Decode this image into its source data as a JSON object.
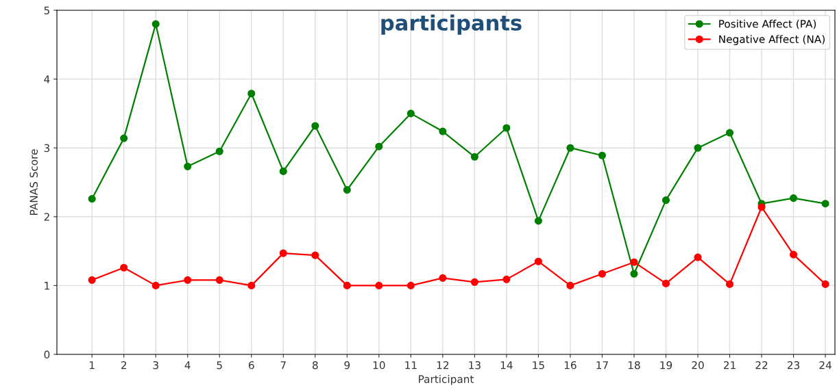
{
  "chart_data": {
    "type": "line",
    "title": "participants",
    "xlabel": "Participant",
    "ylabel": "PANAS Score",
    "x": [
      1,
      2,
      3,
      4,
      5,
      6,
      7,
      8,
      9,
      10,
      11,
      12,
      13,
      14,
      15,
      16,
      17,
      18,
      19,
      20,
      21,
      22,
      23,
      24
    ],
    "series": [
      {
        "name": "Positive Affect (PA)",
        "color": "#008000",
        "values": [
          2.26,
          3.14,
          4.8,
          2.73,
          2.95,
          3.79,
          2.66,
          3.32,
          2.39,
          3.02,
          3.5,
          3.24,
          2.87,
          3.29,
          1.94,
          3.0,
          2.89,
          1.17,
          2.24,
          3.0,
          3.22,
          2.19,
          2.27,
          2.19
        ]
      },
      {
        "name": "Negative Affect (NA)",
        "color": "#ff0000",
        "values": [
          1.08,
          1.26,
          1.0,
          1.08,
          1.08,
          1.0,
          1.47,
          1.44,
          1.0,
          1.0,
          1.0,
          1.11,
          1.05,
          1.09,
          1.35,
          1.0,
          1.17,
          1.34,
          1.03,
          1.41,
          1.02,
          2.14,
          1.45,
          1.02
        ]
      }
    ],
    "xlim": [
      -0.1,
      24.3
    ],
    "xticks": [
      1,
      2,
      3,
      4,
      5,
      6,
      7,
      8,
      9,
      10,
      11,
      12,
      13,
      14,
      15,
      16,
      17,
      18,
      19,
      20,
      21,
      22,
      23,
      24
    ],
    "ylim": [
      0,
      5
    ],
    "yticks": [
      0,
      1,
      2,
      3,
      4,
      5
    ],
    "grid": true,
    "legend": "top right",
    "marker": "circle",
    "line_style": "solid"
  }
}
